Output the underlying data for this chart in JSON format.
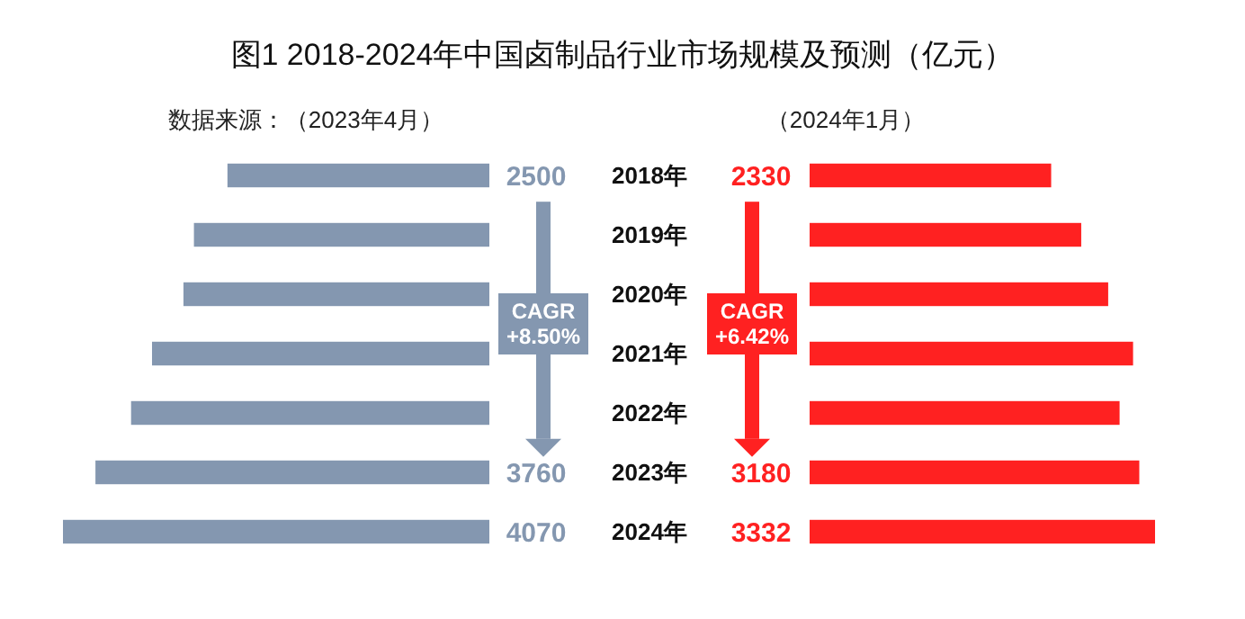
{
  "chart_data": [
    {
      "type": "bar",
      "orientation": "horizontal",
      "title": "图1  2018-2024年中国卤制品行业市场规模及预测（亿元）",
      "subtitle": "数据来源：（2023年4月）",
      "categories": [
        "2018年",
        "2019年",
        "2020年",
        "2021年",
        "2022年",
        "2023年",
        "2024年"
      ],
      "values": [
        2500,
        2820,
        2920,
        3220,
        3420,
        3760,
        4070
      ],
      "value_labels": [
        "2500",
        null,
        null,
        null,
        null,
        "3760",
        "4070"
      ],
      "color": "#8497b0",
      "annotations": [
        "CAGR +8.50%"
      ]
    },
    {
      "type": "bar",
      "orientation": "horizontal",
      "subtitle": "（2024年1月）",
      "categories": [
        "2018年",
        "2019年",
        "2020年",
        "2021年",
        "2022年",
        "2023年",
        "2024年"
      ],
      "values": [
        2330,
        2620,
        2880,
        3120,
        2990,
        3180,
        3332
      ],
      "value_labels": [
        "2330",
        null,
        null,
        null,
        null,
        "3180",
        "3332"
      ],
      "color": "#ff2121",
      "annotations": [
        "CAGR +6.42%"
      ],
      "tick_labels": false
    }
  ]
}
